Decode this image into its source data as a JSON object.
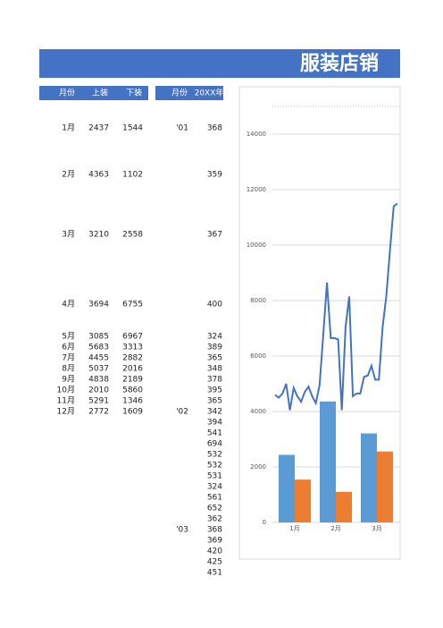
{
  "title": "服装店销",
  "table1": {
    "headers": [
      "月份",
      "上装",
      "下装"
    ],
    "rows": [
      [
        "1月",
        2437,
        1544
      ],
      [
        "2月",
        4363,
        1102
      ],
      [
        "3月",
        3210,
        2558
      ],
      [
        "4月",
        3694,
        6755
      ],
      [
        "5月",
        3085,
        6967
      ],
      [
        "6月",
        5683,
        3313
      ],
      [
        "7月",
        4455,
        2882
      ],
      [
        "8月",
        5037,
        2016
      ],
      [
        "9月",
        4838,
        2189
      ],
      [
        "10月",
        2010,
        5860
      ],
      [
        "11月",
        5291,
        1346
      ],
      [
        "12月",
        2772,
        1609
      ]
    ]
  },
  "table2": {
    "headers": [
      "月份",
      "20XX年"
    ],
    "rows": [
      {
        "label": "'01",
        "value": 368
      },
      {
        "value": 359
      },
      {
        "value": 367
      },
      {
        "value": 400
      },
      {
        "value": 324
      },
      {
        "value": 389
      },
      {
        "value": 365
      },
      {
        "value": 348
      },
      {
        "value": 378
      },
      {
        "value": 395
      },
      {
        "value": 365
      },
      {
        "label": "'02",
        "value": 342
      },
      {
        "value": 394
      },
      {
        "value": 541
      },
      {
        "value": 694
      },
      {
        "value": 532
      },
      {
        "value": 532
      },
      {
        "value": 531
      },
      {
        "value": 324
      },
      {
        "value": 561
      },
      {
        "value": 652
      },
      {
        "value": 362
      },
      {
        "label": "'03",
        "value": 368
      },
      {
        "value": 369
      },
      {
        "value": 420
      },
      {
        "value": 425
      },
      {
        "value": 451
      }
    ]
  },
  "chart_data": {
    "type": "bar",
    "categories": [
      "1月",
      "2月",
      "3月"
    ],
    "series": [
      {
        "name": "上装",
        "color": "#5b9bd5",
        "values": [
          2437,
          4363,
          3210
        ]
      },
      {
        "name": "下装",
        "color": "#ed7d31",
        "values": [
          1544,
          1102,
          2558
        ]
      }
    ],
    "line": {
      "color": "#4472c4",
      "values": [
        4600,
        4500,
        4650,
        5000,
        4050,
        4850,
        4550,
        4350,
        4700,
        4900,
        4550,
        4300,
        4950,
        6750,
        8650,
        6650,
        6650,
        6600,
        4050,
        7050,
        8150,
        4550,
        4650,
        4650,
        5250,
        5300,
        5650,
        5150,
        5150,
        7050,
        8150,
        9800,
        11400,
        11500
      ]
    },
    "ylim": [
      0,
      14000
    ],
    "yticks": [
      0,
      2000,
      4000,
      6000,
      8000,
      10000,
      12000,
      14000
    ],
    "grid": true
  }
}
